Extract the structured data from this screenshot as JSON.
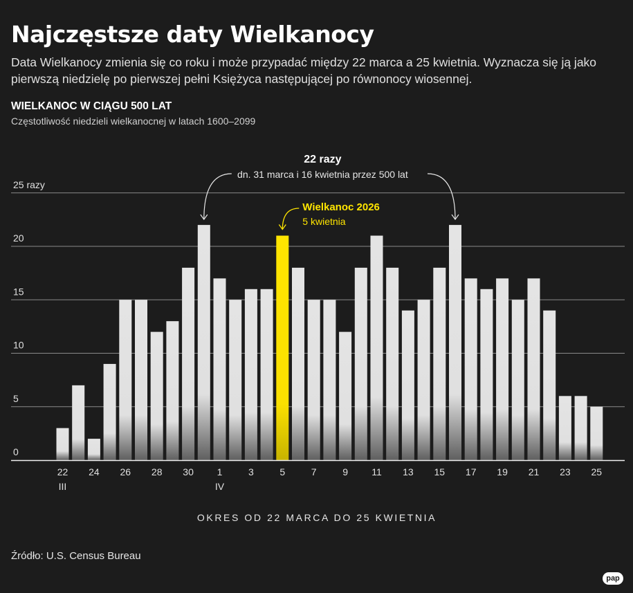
{
  "header": {
    "title": "Najczęstsze daty Wielkanocy",
    "description": "Data Wielkanocy zmienia się co roku i może przypadać między 22 marca a 25 kwietnia. Wyznacza się ją jako pierwszą niedzielę po pierwszej pełni Księżyca następującej po równonocy wiosennej.",
    "section_title": "WIELKANOC W CIĄGU 500 LAT",
    "section_subtitle": "Częstotliwość niedzieli wielkanocnej w latach 1600–2099"
  },
  "footer": {
    "source": "Źródło: U.S. Census Bureau",
    "logo": "pap"
  },
  "colors": {
    "background": "#1c1c1c",
    "bar": "#e4e4e4",
    "highlight": "#ffe500",
    "grid": "#8a8a8a",
    "text": "#e6e6e6"
  },
  "chart_data": {
    "type": "bar",
    "title": "WIELKANOC W CIĄGU 500 LAT",
    "subtitle": "Częstotliwość niedzieli wielkanocnej w latach 1600–2099",
    "xlabel": "OKRES OD 22 MARCA DO 25 KWIETNIA",
    "ylabel": "",
    "ylim": [
      0,
      25
    ],
    "yticks": [
      "0",
      "5",
      "10",
      "15",
      "20",
      "25 razy"
    ],
    "grid": true,
    "categories": [
      "22",
      "23",
      "24",
      "25",
      "26",
      "27",
      "28",
      "29",
      "30",
      "31",
      "1",
      "2",
      "3",
      "4",
      "5",
      "6",
      "7",
      "8",
      "9",
      "10",
      "11",
      "12",
      "13",
      "14",
      "15",
      "16",
      "17",
      "18",
      "19",
      "20",
      "21",
      "22",
      "23",
      "24",
      "25"
    ],
    "values": [
      3,
      7,
      2,
      9,
      15,
      15,
      12,
      13,
      18,
      22,
      17,
      15,
      16,
      16,
      21,
      18,
      15,
      15,
      12,
      18,
      21,
      18,
      14,
      15,
      18,
      22,
      17,
      16,
      17,
      15,
      17,
      14,
      6,
      6,
      5
    ],
    "xtick_labels": [
      {
        "index": 0,
        "label": "22",
        "sub": "III"
      },
      {
        "index": 2,
        "label": "24"
      },
      {
        "index": 4,
        "label": "26"
      },
      {
        "index": 6,
        "label": "28"
      },
      {
        "index": 8,
        "label": "30"
      },
      {
        "index": 10,
        "label": "1",
        "sub": "IV"
      },
      {
        "index": 12,
        "label": "3"
      },
      {
        "index": 14,
        "label": "5"
      },
      {
        "index": 16,
        "label": "7"
      },
      {
        "index": 18,
        "label": "9"
      },
      {
        "index": 20,
        "label": "11"
      },
      {
        "index": 22,
        "label": "13"
      },
      {
        "index": 24,
        "label": "15"
      },
      {
        "index": 26,
        "label": "17"
      },
      {
        "index": 28,
        "label": "19"
      },
      {
        "index": 30,
        "label": "21"
      },
      {
        "index": 32,
        "label": "23"
      },
      {
        "index": 34,
        "label": "25"
      }
    ],
    "highlight_index": 14,
    "annotations": {
      "top": {
        "title": "22 razy",
        "text": "dn. 31 marca i 16 kwietnia przez 500 lat",
        "indices": [
          9,
          25
        ]
      },
      "highlight": {
        "title": "Wielkanoc 2026",
        "text": "5 kwietnia",
        "index": 14
      }
    }
  }
}
